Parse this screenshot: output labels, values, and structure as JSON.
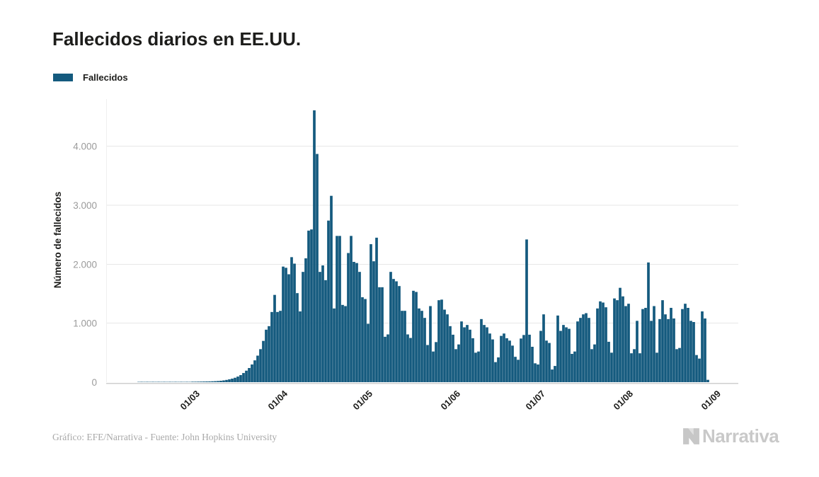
{
  "title": "Fallecidos diarios en EE.UU.",
  "legend": {
    "label": "Fallecidos",
    "color": "#145A7E"
  },
  "y_axis": {
    "title": "Número de fallecidos",
    "tick_labels": [
      "0",
      "1.000",
      "2.000",
      "3.000",
      "4.000"
    ],
    "tick_values": [
      0,
      1000,
      2000,
      3000,
      4000
    ]
  },
  "x_axis": {
    "tick_labels": [
      "01/03",
      "01/04",
      "01/05",
      "01/06",
      "01/07",
      "01/08",
      "01/09"
    ]
  },
  "footer": {
    "credit": "Gráfico: EFE/Narrativa - Fuente: John Hopkins University"
  },
  "logo": {
    "icon": "narrativa-n-icon",
    "text": "Narrativa"
  },
  "colors": {
    "bar": "#145A7E",
    "grid": "#E7E7E7",
    "axis_line": "#CFCFCF",
    "y_tick_text": "#9B9B9B",
    "x_tick_text": "#1D1D1B",
    "footer_text": "#A9A9A9",
    "logo_gray": "#C9C9C9"
  },
  "chart_data": {
    "type": "bar",
    "title": "Fallecidos diarios en EE.UU.",
    "series_name": "Fallecidos",
    "ylabel": "Número de fallecidos",
    "ylim": [
      0,
      4800
    ],
    "grid": "horizontal-only",
    "legend_position": "top-left",
    "bar_color": "#145A7E",
    "start_date": "2020-02-01",
    "end_date": "2020-08-29",
    "x_ticks": [
      {
        "label": "01/03",
        "day_index": 29
      },
      {
        "label": "01/04",
        "day_index": 60
      },
      {
        "label": "01/05",
        "day_index": 90
      },
      {
        "label": "01/06",
        "day_index": 121
      },
      {
        "label": "01/07",
        "day_index": 151
      },
      {
        "label": "01/08",
        "day_index": 182
      },
      {
        "label": "01/09",
        "day_index": 213
      }
    ],
    "months": [
      {
        "month": "2020-02",
        "values": [
          0,
          0,
          0,
          0,
          0,
          0,
          0,
          0,
          0,
          5,
          6,
          5,
          6,
          5,
          6,
          5,
          6,
          5,
          6,
          5,
          6,
          5,
          6,
          5,
          6,
          5,
          6,
          5,
          8
        ]
      },
      {
        "month": "2020-03",
        "values": [
          8,
          9,
          10,
          11,
          12,
          13,
          15,
          17,
          20,
          24,
          30,
          38,
          48,
          60,
          75,
          95,
          120,
          155,
          195,
          240,
          300,
          370,
          450,
          560,
          700,
          890,
          950,
          1190,
          1480,
          1190,
          1210
        ]
      },
      {
        "month": "2020-04",
        "values": [
          1960,
          1940,
          1830,
          2120,
          2010,
          1510,
          1200,
          1870,
          2100,
          2570,
          2590,
          4610,
          3870,
          1870,
          1980,
          1730,
          2740,
          3160,
          1250,
          2480,
          2480,
          1310,
          1290,
          2190,
          2480,
          2040,
          2020,
          1870,
          1440,
          1410
        ]
      },
      {
        "month": "2020-05",
        "values": [
          990,
          2340,
          2050,
          2450,
          1610,
          1610,
          770,
          810,
          1870,
          1750,
          1710,
          1630,
          1210,
          1210,
          810,
          750,
          1550,
          1530,
          1250,
          1210,
          1090,
          630,
          1290,
          520,
          680,
          1390,
          1400,
          1230,
          1150,
          950,
          805
        ]
      },
      {
        "month": "2020-06",
        "values": [
          560,
          640,
          1030,
          930,
          970,
          890,
          745,
          500,
          520,
          1070,
          970,
          930,
          825,
          725,
          340,
          420,
          785,
          825,
          745,
          705,
          620,
          430,
          380,
          740,
          800,
          2420,
          805,
          600,
          320,
          300
        ]
      },
      {
        "month": "2020-07",
        "values": [
          870,
          1150,
          705,
          665,
          215,
          275,
          1130,
          870,
          970,
          930,
          905,
          480,
          520,
          1030,
          1090,
          1150,
          1170,
          1090,
          560,
          640,
          1250,
          1370,
          1350,
          1270,
          685,
          500,
          1420,
          1390,
          1600,
          1455,
          1290
        ]
      },
      {
        "month": "2020-08",
        "values": [
          1330,
          490,
          560,
          1040,
          490,
          1240,
          1260,
          2030,
          1040,
          1290,
          500,
          1070,
          1390,
          1150,
          1070,
          1260,
          1080,
          560,
          580,
          1240,
          1330,
          1260,
          1040,
          1020,
          460,
          400,
          1200,
          1080,
          40
        ]
      }
    ]
  }
}
